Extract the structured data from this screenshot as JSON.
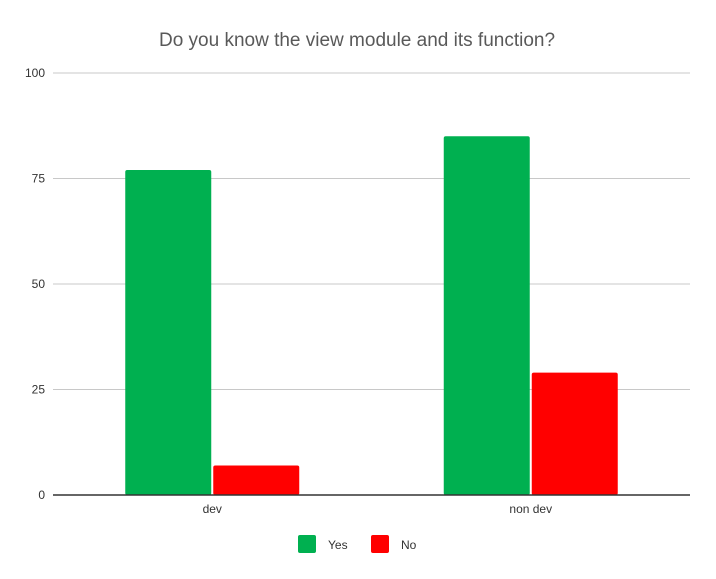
{
  "chart_data": {
    "type": "bar",
    "title": "Do you know the view module and its function?",
    "categories": [
      "dev",
      "non dev"
    ],
    "series": [
      {
        "name": "Yes",
        "values": [
          77,
          85
        ],
        "color": "#00b050"
      },
      {
        "name": "No",
        "values": [
          7,
          29
        ],
        "color": "#ff0000"
      }
    ],
    "xlabel": "",
    "ylabel": "",
    "ylim": [
      0,
      100
    ],
    "yticks": [
      "0",
      "25",
      "50",
      "75",
      "100"
    ],
    "grid": true,
    "legend_position": "bottom"
  }
}
